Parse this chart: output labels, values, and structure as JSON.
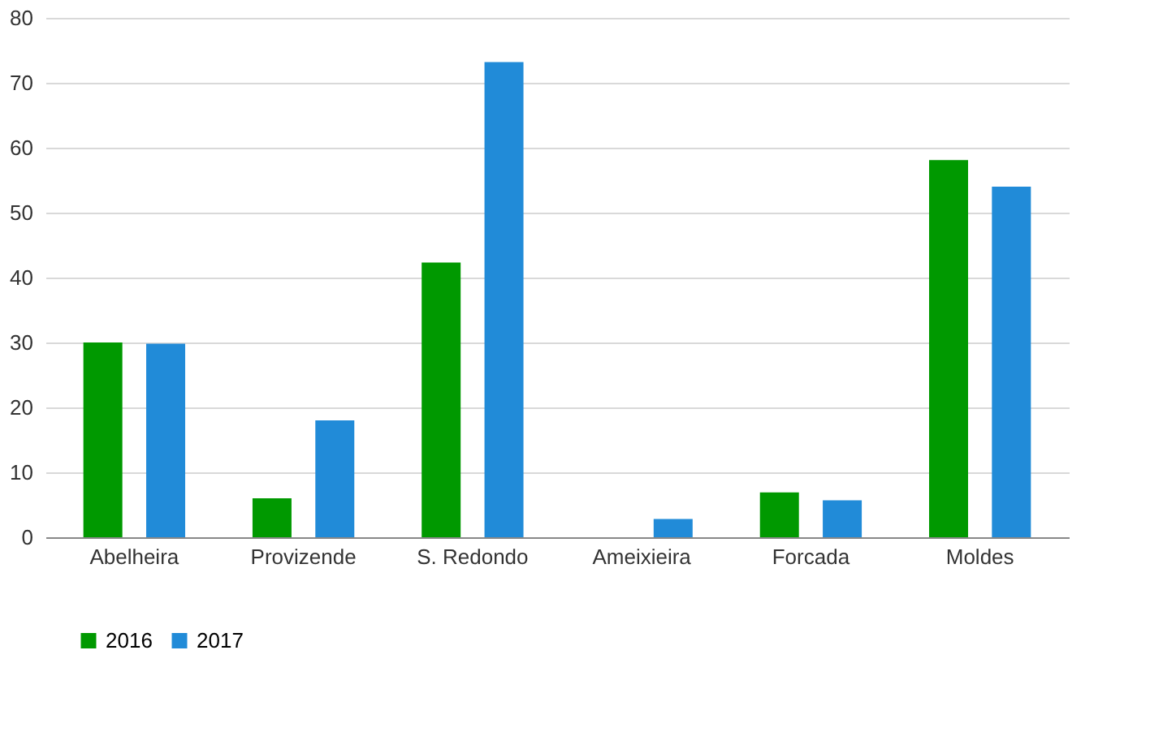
{
  "chart_data": {
    "type": "bar",
    "categories": [
      "Abelheira",
      "Provizende",
      "S. Redondo",
      "Ameixieira",
      "Forcada",
      "Moldes"
    ],
    "series": [
      {
        "name": "2016",
        "color": "#009900",
        "values": [
          30,
          6,
          42.3,
          0,
          6.9,
          58.1
        ]
      },
      {
        "name": "2017",
        "color": "#218bd8",
        "values": [
          29.8,
          18,
          73.2,
          2.8,
          5.7,
          54
        ]
      }
    ],
    "ylim": [
      0,
      80
    ],
    "yticks": [
      0,
      10,
      20,
      30,
      40,
      50,
      60,
      70,
      80
    ],
    "grid": "y",
    "legend": "bottom"
  }
}
